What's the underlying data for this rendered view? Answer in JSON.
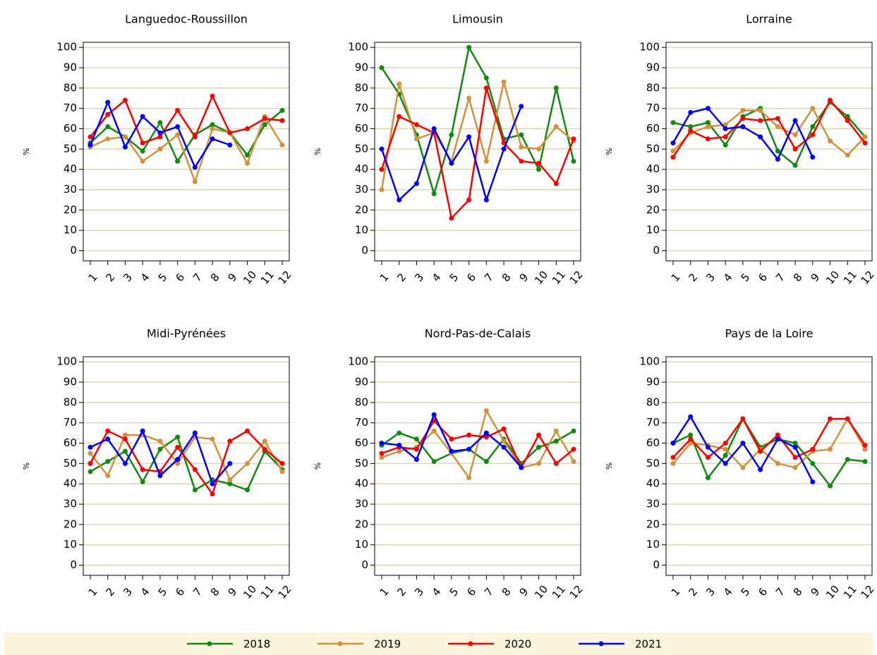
{
  "chart_data": [
    {
      "type": "line",
      "title": "Languedoc-Roussillon",
      "ylabel": "%",
      "grid": true,
      "categories": [
        "1",
        "2",
        "3",
        "4",
        "5",
        "6",
        "7",
        "8",
        "9",
        "10",
        "11",
        "12"
      ],
      "ylim": [
        -5,
        102.5
      ],
      "yticks": [
        0,
        10,
        20,
        30,
        40,
        50,
        60,
        70,
        80,
        90,
        100
      ],
      "series": [
        {
          "name": "2018",
          "color": "#108a10",
          "values": [
            53,
            61,
            56,
            49,
            63,
            44,
            57,
            62,
            58,
            47,
            62,
            69
          ]
        },
        {
          "name": "2019",
          "color": "#d4913c",
          "values": [
            51,
            55,
            56,
            44,
            50,
            57,
            34,
            60,
            58,
            43,
            66,
            52
          ]
        },
        {
          "name": "2020",
          "color": "#ff0000",
          "values": [
            56,
            67,
            74,
            53,
            56,
            69,
            56,
            76,
            58,
            60,
            65,
            64
          ]
        },
        {
          "name": "2021",
          "color": "#0000ff",
          "values": [
            52,
            73,
            51,
            66,
            58,
            61,
            41,
            55,
            52,
            null,
            null,
            null
          ]
        }
      ]
    },
    {
      "type": "line",
      "title": "Limousin",
      "ylabel": "%",
      "grid": true,
      "categories": [
        "1",
        "2",
        "3",
        "4",
        "5",
        "6",
        "7",
        "8",
        "9",
        "10",
        "11",
        "12"
      ],
      "ylim": [
        -5,
        102.5
      ],
      "yticks": [
        0,
        10,
        20,
        30,
        40,
        50,
        60,
        70,
        80,
        90,
        100
      ],
      "series": [
        {
          "name": "2018",
          "color": "#108a10",
          "values": [
            90,
            77,
            57,
            28,
            57,
            100,
            85,
            55,
            57,
            40,
            80,
            44
          ]
        },
        {
          "name": "2019",
          "color": "#d4913c",
          "values": [
            30,
            82,
            55,
            58,
            44,
            75,
            44,
            83,
            51,
            50,
            61,
            54
          ]
        },
        {
          "name": "2020",
          "color": "#ff0000",
          "values": [
            40,
            66,
            62,
            58,
            16,
            25,
            80,
            53,
            44,
            43,
            33,
            55
          ]
        },
        {
          "name": "2021",
          "color": "#0000ff",
          "values": [
            50,
            25,
            33,
            60,
            43,
            56,
            25,
            50,
            71,
            null,
            null,
            null
          ]
        }
      ]
    },
    {
      "type": "line",
      "title": "Lorraine",
      "ylabel": "%",
      "grid": true,
      "categories": [
        "1",
        "2",
        "3",
        "4",
        "5",
        "6",
        "7",
        "8",
        "9",
        "10",
        "11",
        "12"
      ],
      "ylim": [
        -5,
        102.5
      ],
      "yticks": [
        0,
        10,
        20,
        30,
        40,
        50,
        60,
        70,
        80,
        90,
        100
      ],
      "series": [
        {
          "name": "2018",
          "color": "#108a10",
          "values": [
            63,
            61,
            63,
            52,
            66,
            70,
            49,
            42,
            61,
            73,
            66,
            56
          ]
        },
        {
          "name": "2019",
          "color": "#d4913c",
          "values": [
            49,
            58,
            61,
            62,
            69,
            69,
            61,
            57,
            70,
            54,
            47,
            56
          ]
        },
        {
          "name": "2020",
          "color": "#ff0000",
          "values": [
            46,
            59,
            55,
            56,
            65,
            64,
            65,
            50,
            57,
            74,
            64,
            53
          ]
        },
        {
          "name": "2021",
          "color": "#0000ff",
          "values": [
            53,
            68,
            70,
            60,
            61,
            56,
            45,
            64,
            46,
            null,
            null,
            null
          ]
        }
      ]
    },
    {
      "type": "line",
      "title": "Midi-Pyrénées",
      "ylabel": "%",
      "grid": true,
      "categories": [
        "1",
        "2",
        "3",
        "4",
        "5",
        "6",
        "7",
        "8",
        "9",
        "10",
        "11",
        "12"
      ],
      "ylim": [
        -5,
        102.5
      ],
      "yticks": [
        0,
        10,
        20,
        30,
        40,
        50,
        60,
        70,
        80,
        90,
        100
      ],
      "series": [
        {
          "name": "2018",
          "color": "#108a10",
          "values": [
            46,
            51,
            56,
            41,
            57,
            63,
            37,
            42,
            40,
            37,
            56,
            47
          ]
        },
        {
          "name": "2019",
          "color": "#d4913c",
          "values": [
            55,
            44,
            64,
            64,
            61,
            50,
            63,
            62,
            42,
            50,
            61,
            46
          ]
        },
        {
          "name": "2020",
          "color": "#ff0000",
          "values": [
            50,
            66,
            62,
            47,
            46,
            58,
            47,
            35,
            61,
            66,
            57,
            50
          ]
        },
        {
          "name": "2021",
          "color": "#0000ff",
          "values": [
            58,
            62,
            50,
            66,
            44,
            52,
            65,
            40,
            50,
            null,
            null,
            null
          ]
        }
      ]
    },
    {
      "type": "line",
      "title": "Nord-Pas-de-Calais",
      "ylabel": "%",
      "grid": true,
      "categories": [
        "1",
        "2",
        "3",
        "4",
        "5",
        "6",
        "7",
        "8",
        "9",
        "10",
        "11",
        "12"
      ],
      "ylim": [
        -5,
        102.5
      ],
      "yticks": [
        0,
        10,
        20,
        30,
        40,
        50,
        60,
        70,
        80,
        90,
        100
      ],
      "series": [
        {
          "name": "2018",
          "color": "#108a10",
          "values": [
            59,
            65,
            62,
            51,
            55,
            57,
            51,
            62,
            50,
            58,
            61,
            66
          ]
        },
        {
          "name": "2019",
          "color": "#d4913c",
          "values": [
            53,
            56,
            58,
            66,
            55,
            43,
            76,
            61,
            48,
            50,
            66,
            51
          ]
        },
        {
          "name": "2020",
          "color": "#ff0000",
          "values": [
            55,
            58,
            57,
            71,
            62,
            64,
            63,
            67,
            48,
            64,
            50,
            57
          ]
        },
        {
          "name": "2021",
          "color": "#0000ff",
          "values": [
            60,
            59,
            52,
            74,
            56,
            57,
            65,
            58,
            48,
            null,
            null,
            null
          ]
        }
      ]
    },
    {
      "type": "line",
      "title": "Pays de la Loire",
      "ylabel": "%",
      "grid": true,
      "categories": [
        "1",
        "2",
        "3",
        "4",
        "5",
        "6",
        "7",
        "8",
        "9",
        "10",
        "11",
        "12"
      ],
      "ylim": [
        -5,
        102.5
      ],
      "yticks": [
        0,
        10,
        20,
        30,
        40,
        50,
        60,
        70,
        80,
        90,
        100
      ],
      "series": [
        {
          "name": "2018",
          "color": "#108a10",
          "values": [
            60,
            64,
            43,
            54,
            72,
            58,
            62,
            60,
            50,
            39,
            52,
            51
          ]
        },
        {
          "name": "2019",
          "color": "#d4913c",
          "values": [
            50,
            60,
            59,
            57,
            48,
            57,
            50,
            48,
            56,
            57,
            72,
            57
          ]
        },
        {
          "name": "2020",
          "color": "#ff0000",
          "values": [
            53,
            62,
            53,
            60,
            72,
            56,
            64,
            53,
            57,
            72,
            72,
            59
          ]
        },
        {
          "name": "2021",
          "color": "#0000ff",
          "values": [
            60,
            73,
            58,
            50,
            60,
            47,
            62,
            58,
            41,
            null,
            null,
            null
          ]
        }
      ]
    }
  ]
}
